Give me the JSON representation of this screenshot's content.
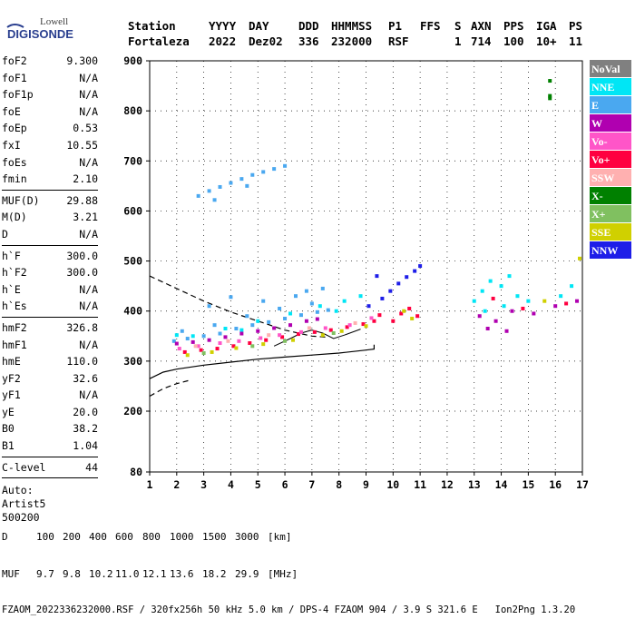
{
  "logo": {
    "line1": "Lowell",
    "line2": "DIGISONDE"
  },
  "header": {
    "labels": [
      "Station",
      "YYYY",
      "DAY",
      "DDD",
      "HHMMSS",
      "P1",
      "FFS",
      "S",
      "AXN",
      "PPS",
      "IGA",
      "PS"
    ],
    "values": [
      "Fortaleza",
      "2022",
      "Dez02",
      "336",
      "232000",
      "RSF",
      "1",
      "714",
      "100",
      "10+",
      "11"
    ]
  },
  "params": {
    "group1": [
      {
        "name": "foF2",
        "value": "9.300"
      },
      {
        "name": "foF1",
        "value": "N/A"
      },
      {
        "name": "foF1p",
        "value": "N/A"
      },
      {
        "name": "foE",
        "value": "N/A"
      },
      {
        "name": "foEp",
        "value": "0.53"
      },
      {
        "name": "fxI",
        "value": "10.55"
      },
      {
        "name": "foEs",
        "value": "N/A"
      },
      {
        "name": "fmin",
        "value": "2.10"
      }
    ],
    "group2": [
      {
        "name": "MUF(D)",
        "value": "29.88"
      },
      {
        "name": "M(D)",
        "value": "3.21"
      },
      {
        "name": "D",
        "value": "N/A"
      }
    ],
    "group3": [
      {
        "name": "h`F",
        "value": "300.0"
      },
      {
        "name": "h`F2",
        "value": "300.0"
      },
      {
        "name": "h`E",
        "value": "N/A"
      },
      {
        "name": "h`Es",
        "value": "N/A"
      }
    ],
    "group4": [
      {
        "name": "hmF2",
        "value": "326.8"
      },
      {
        "name": "hmF1",
        "value": "N/A"
      },
      {
        "name": "hmE",
        "value": "110.0"
      },
      {
        "name": "yF2",
        "value": "32.6"
      },
      {
        "name": "yF1",
        "value": "N/A"
      },
      {
        "name": "yE",
        "value": "20.0"
      },
      {
        "name": "B0",
        "value": "38.2"
      },
      {
        "name": "B1",
        "value": "1.04"
      }
    ],
    "group5": [
      {
        "name": "C-level",
        "value": "44"
      }
    ],
    "auto": [
      "Auto:",
      "Artist5",
      "500200"
    ]
  },
  "footer": {
    "d_label": "D",
    "d_values": [
      "100",
      "200",
      "400",
      "600",
      "800",
      "1000",
      "1500",
      "3000"
    ],
    "d_unit": "[km]",
    "muf_label": "MUF",
    "muf_values": [
      "9.7",
      "9.8",
      "10.2",
      "11.0",
      "12.1",
      "13.6",
      "18.2",
      "29.9"
    ],
    "muf_unit": "[MHz]",
    "info": "FZAOM_2022336232000.RSF / 320fx256h 50 kHz 5.0 km / DPS-4 FZAOM 904 / 3.9 S 321.6 E   Ion2Png 1.3.20"
  },
  "chart_data": {
    "type": "scatter",
    "xlim": [
      1,
      17
    ],
    "ylim": [
      80,
      900
    ],
    "x_ticks": [
      "1",
      "2",
      "3",
      "4",
      "5",
      "6",
      "7",
      "8",
      "9",
      "10",
      "11",
      "12",
      "13",
      "14",
      "15",
      "16",
      "17"
    ],
    "y_ticks": [
      "80",
      "200",
      "300",
      "400",
      "500",
      "600",
      "700",
      "800",
      "900"
    ],
    "grid": true,
    "legend_position": "right",
    "legend": [
      {
        "label": "NoVal",
        "color": "#808080"
      },
      {
        "label": "NNE",
        "color": "#00e6f5"
      },
      {
        "label": "E",
        "color": "#4aa8f0"
      },
      {
        "label": "W",
        "color": "#b000b0"
      },
      {
        "label": "Vo-",
        "color": "#ff55c8"
      },
      {
        "label": "Vo+",
        "color": "#ff0040"
      },
      {
        "label": "SSW",
        "color": "#ffb0b0"
      },
      {
        "label": "X-",
        "color": "#008000"
      },
      {
        "label": "X+",
        "color": "#80c060"
      },
      {
        "label": "SSE",
        "color": "#d0d000"
      },
      {
        "label": "NNW",
        "color": "#1e1ee8"
      }
    ],
    "traces": [
      {
        "color": "#4aa8f0",
        "points": [
          [
            1.9,
            340
          ],
          [
            2.4,
            345
          ],
          [
            3.0,
            350
          ],
          [
            3.6,
            355
          ],
          [
            4.2,
            365
          ],
          [
            4.8,
            372
          ],
          [
            5.4,
            378
          ],
          [
            6.0,
            385
          ],
          [
            6.6,
            392
          ],
          [
            7.2,
            398
          ],
          [
            7.6,
            402
          ],
          [
            2.2,
            360
          ],
          [
            3.4,
            372
          ],
          [
            4.6,
            390
          ],
          [
            5.8,
            405
          ],
          [
            7.0,
            415
          ],
          [
            5.2,
            420
          ],
          [
            6.4,
            430
          ],
          [
            4.0,
            428
          ],
          [
            3.2,
            410
          ],
          [
            6.8,
            440
          ],
          [
            7.4,
            445
          ]
        ]
      },
      {
        "color": "#00e6f5",
        "points": [
          [
            2.6,
            350
          ],
          [
            3.8,
            365
          ],
          [
            5.0,
            380
          ],
          [
            6.2,
            395
          ],
          [
            7.3,
            410
          ],
          [
            8.2,
            420
          ],
          [
            8.8,
            430
          ],
          [
            7.9,
            400
          ],
          [
            2.0,
            352
          ],
          [
            4.4,
            362
          ]
        ]
      },
      {
        "color": "#b000b0",
        "points": [
          [
            2.0,
            335
          ],
          [
            2.6,
            338
          ],
          [
            3.2,
            342
          ],
          [
            3.8,
            348
          ],
          [
            4.4,
            355
          ],
          [
            5.0,
            360
          ],
          [
            5.6,
            366
          ],
          [
            6.2,
            372
          ],
          [
            6.8,
            380
          ],
          [
            7.2,
            384
          ]
        ]
      },
      {
        "color": "#ff0040",
        "points": [
          [
            2.3,
            318
          ],
          [
            2.9,
            322
          ],
          [
            3.5,
            325
          ],
          [
            4.1,
            330
          ],
          [
            4.7,
            336
          ],
          [
            5.3,
            342
          ],
          [
            5.9,
            348
          ],
          [
            6.5,
            354
          ],
          [
            7.1,
            358
          ],
          [
            7.7,
            362
          ],
          [
            8.3,
            368
          ],
          [
            8.9,
            374
          ],
          [
            9.3,
            380
          ],
          [
            9.5,
            392
          ]
        ]
      },
      {
        "color": "#ff55c8",
        "points": [
          [
            2.1,
            325
          ],
          [
            2.8,
            330
          ],
          [
            3.6,
            336
          ],
          [
            4.3,
            340
          ],
          [
            5.1,
            346
          ],
          [
            5.8,
            352
          ],
          [
            6.6,
            358
          ],
          [
            7.5,
            366
          ],
          [
            8.4,
            372
          ],
          [
            9.2,
            386
          ]
        ]
      },
      {
        "color": "#d0d000",
        "points": [
          [
            2.4,
            312
          ],
          [
            3.3,
            318
          ],
          [
            4.2,
            326
          ],
          [
            5.2,
            334
          ],
          [
            6.3,
            342
          ],
          [
            7.4,
            352
          ],
          [
            8.1,
            360
          ],
          [
            9.0,
            370
          ]
        ]
      },
      {
        "color": "#ffb0b0",
        "points": [
          [
            2.7,
            330
          ],
          [
            3.9,
            340
          ],
          [
            5.4,
            352
          ],
          [
            6.9,
            366
          ],
          [
            8.6,
            376
          ]
        ]
      },
      {
        "color": "#80c060",
        "points": [
          [
            3.0,
            316
          ],
          [
            4.8,
            330
          ],
          [
            6.0,
            340
          ],
          [
            7.8,
            356
          ]
        ]
      },
      {
        "color": "#1e1ee8",
        "points": [
          [
            9.6,
            425
          ],
          [
            9.9,
            440
          ],
          [
            10.2,
            455
          ],
          [
            10.5,
            468
          ],
          [
            10.8,
            480
          ],
          [
            11.0,
            490
          ],
          [
            9.4,
            470
          ],
          [
            9.1,
            410
          ]
        ]
      },
      {
        "color": "#4aa8f0",
        "points": [
          [
            2.8,
            630
          ],
          [
            3.2,
            640
          ],
          [
            3.6,
            648
          ],
          [
            4.0,
            656
          ],
          [
            4.4,
            664
          ],
          [
            4.8,
            672
          ],
          [
            5.2,
            678
          ],
          [
            5.6,
            684
          ],
          [
            6.0,
            690
          ],
          [
            3.4,
            622
          ],
          [
            4.6,
            650
          ]
        ]
      },
      {
        "color": "#00e6f5",
        "points": [
          [
            13.0,
            420
          ],
          [
            13.3,
            440
          ],
          [
            13.6,
            460
          ],
          [
            14.0,
            450
          ],
          [
            14.3,
            470
          ],
          [
            14.6,
            430
          ],
          [
            15.0,
            420
          ],
          [
            13.4,
            400
          ],
          [
            14.1,
            410
          ],
          [
            16.2,
            430
          ],
          [
            16.6,
            450
          ]
        ]
      },
      {
        "color": "#b000b0",
        "points": [
          [
            13.2,
            390
          ],
          [
            13.8,
            380
          ],
          [
            14.4,
            400
          ],
          [
            15.2,
            395
          ],
          [
            16.0,
            410
          ],
          [
            16.8,
            420
          ],
          [
            14.2,
            360
          ],
          [
            13.5,
            365
          ]
        ]
      },
      {
        "color": "#ff0040",
        "points": [
          [
            10.0,
            380
          ],
          [
            10.3,
            395
          ],
          [
            10.6,
            405
          ],
          [
            10.9,
            390
          ],
          [
            14.8,
            405
          ],
          [
            16.4,
            415
          ],
          [
            13.7,
            425
          ]
        ]
      },
      {
        "color": "#d0d000",
        "points": [
          [
            10.4,
            400
          ],
          [
            10.7,
            385
          ],
          [
            16.9,
            505
          ],
          [
            15.6,
            420
          ]
        ]
      },
      {
        "color": "#008000",
        "points": [
          [
            15.8,
            860
          ],
          [
            15.8,
            830
          ],
          [
            15.8,
            825
          ]
        ]
      }
    ],
    "solid_curve": [
      [
        1.0,
        265
      ],
      [
        1.5,
        278
      ],
      [
        2.0,
        284
      ],
      [
        3.0,
        292
      ],
      [
        4.0,
        298
      ],
      [
        5.0,
        304
      ],
      [
        6.0,
        308
      ],
      [
        7.0,
        312
      ],
      [
        8.0,
        316
      ],
      [
        9.0,
        322
      ],
      [
        9.3,
        324
      ],
      [
        9.3,
        333
      ]
    ],
    "dashed_curve_upper": [
      [
        1.0,
        470
      ],
      [
        2.0,
        445
      ],
      [
        3.0,
        420
      ],
      [
        4.0,
        398
      ],
      [
        5.0,
        380
      ],
      [
        6.0,
        362
      ],
      [
        7.0,
        350
      ],
      [
        7.5,
        348
      ]
    ],
    "dashed_curve_lower": [
      [
        1.0,
        230
      ],
      [
        1.5,
        245
      ],
      [
        2.0,
        255
      ],
      [
        2.5,
        262
      ]
    ],
    "thin_curve": [
      [
        5.6,
        330
      ],
      [
        6.2,
        345
      ],
      [
        6.6,
        356
      ],
      [
        7.0,
        362
      ],
      [
        7.4,
        356
      ],
      [
        7.8,
        345
      ],
      [
        8.2,
        352
      ],
      [
        8.8,
        364
      ]
    ]
  }
}
